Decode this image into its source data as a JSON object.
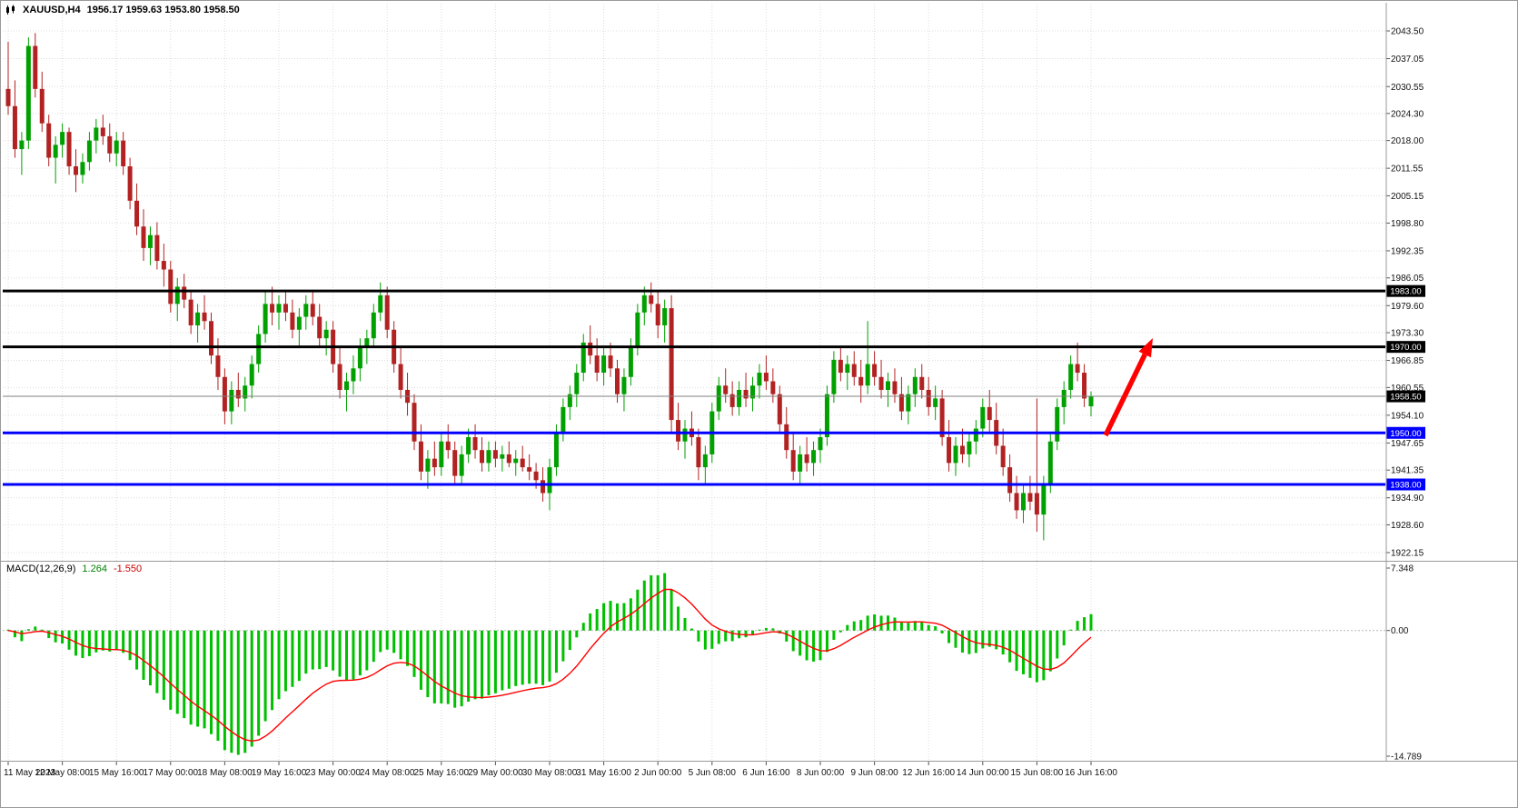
{
  "header": {
    "symbol_timeframe": "XAUUSD,H4",
    "ohlc": "1956.17 1959.63 1953.80 1958.50"
  },
  "chart_data": {
    "type": "candlestick",
    "symbol": "XAUUSD",
    "timeframe": "H4",
    "current_ohlc": {
      "open": 1956.17,
      "high": 1959.63,
      "low": 1953.8,
      "close": 1958.5
    },
    "price_axis_ticks": [
      "2043.50",
      "2037.05",
      "2030.55",
      "2024.30",
      "2018.00",
      "2011.55",
      "2005.15",
      "1998.80",
      "1992.35",
      "1986.05",
      "1979.60",
      "1973.30",
      "1966.85",
      "1960.55",
      "1954.10",
      "1947.65",
      "1941.35",
      "1934.90",
      "1928.60",
      "1922.15"
    ],
    "time_axis_labels": [
      "11 May 2023",
      "12 May 08:00",
      "15 May 16:00",
      "17 May 00:00",
      "18 May 08:00",
      "19 May 16:00",
      "23 May 00:00",
      "24 May 08:00",
      "25 May 16:00",
      "29 May 00:00",
      "30 May 08:00",
      "31 May 16:00",
      "2 Jun 00:00",
      "5 Jun 08:00",
      "6 Jun 16:00",
      "8 Jun 00:00",
      "9 Jun 08:00",
      "12 Jun 16:00",
      "14 Jun 00:00",
      "15 Jun 08:00",
      "16 Jun 16:00"
    ],
    "bars_per_time_tick": 8,
    "candles": [
      [
        2030,
        2041,
        2024,
        2026
      ],
      [
        2026,
        2032,
        2014,
        2016
      ],
      [
        2016,
        2020,
        2010,
        2018
      ],
      [
        2018,
        2042,
        2016,
        2040
      ],
      [
        2040,
        2043,
        2028,
        2030
      ],
      [
        2030,
        2034,
        2020,
        2022
      ],
      [
        2022,
        2024,
        2012,
        2014
      ],
      [
        2014,
        2019,
        2008,
        2017
      ],
      [
        2017,
        2022,
        2014,
        2020
      ],
      [
        2020,
        2021,
        2010,
        2012
      ],
      [
        2012,
        2016,
        2006,
        2010
      ],
      [
        2010,
        2015,
        2008,
        2013
      ],
      [
        2013,
        2020,
        2011,
        2018
      ],
      [
        2018,
        2023,
        2015,
        2021
      ],
      [
        2021,
        2024,
        2017,
        2019
      ],
      [
        2019,
        2022,
        2013,
        2015
      ],
      [
        2015,
        2020,
        2012,
        2018
      ],
      [
        2018,
        2020,
        2010,
        2012
      ],
      [
        2012,
        2014,
        2002,
        2004
      ],
      [
        2004,
        2008,
        1996,
        1998
      ],
      [
        1998,
        2002,
        1990,
        1993
      ],
      [
        1993,
        1998,
        1989,
        1996
      ],
      [
        1996,
        1999,
        1988,
        1990
      ],
      [
        1990,
        1994,
        1984,
        1988
      ],
      [
        1988,
        1990,
        1978,
        1980
      ],
      [
        1980,
        1986,
        1976,
        1984
      ],
      [
        1984,
        1987,
        1979,
        1981
      ],
      [
        1981,
        1983,
        1973,
        1975
      ],
      [
        1975,
        1980,
        1971,
        1978
      ],
      [
        1978,
        1982,
        1974,
        1976
      ],
      [
        1976,
        1978,
        1966,
        1968
      ],
      [
        1968,
        1972,
        1960,
        1963
      ],
      [
        1963,
        1965,
        1952,
        1955
      ],
      [
        1955,
        1962,
        1952,
        1960
      ],
      [
        1960,
        1964,
        1956,
        1958
      ],
      [
        1958,
        1963,
        1955,
        1961
      ],
      [
        1961,
        1968,
        1958,
        1966
      ],
      [
        1966,
        1975,
        1964,
        1973
      ],
      [
        1973,
        1983,
        1971,
        1980
      ],
      [
        1980,
        1984,
        1975,
        1978
      ],
      [
        1978,
        1982,
        1974,
        1980
      ],
      [
        1980,
        1983,
        1976,
        1978
      ],
      [
        1978,
        1981,
        1972,
        1974
      ],
      [
        1974,
        1979,
        1970,
        1977
      ],
      [
        1977,
        1982,
        1974,
        1980
      ],
      [
        1980,
        1983,
        1975,
        1977
      ],
      [
        1977,
        1980,
        1970,
        1972
      ],
      [
        1972,
        1976,
        1968,
        1974
      ],
      [
        1974,
        1976,
        1964,
        1966
      ],
      [
        1966,
        1970,
        1958,
        1960
      ],
      [
        1960,
        1964,
        1955,
        1962
      ],
      [
        1962,
        1968,
        1959,
        1965
      ],
      [
        1965,
        1972,
        1962,
        1970
      ],
      [
        1970,
        1974,
        1966,
        1972
      ],
      [
        1972,
        1980,
        1970,
        1978
      ],
      [
        1978,
        1985,
        1976,
        1982
      ],
      [
        1982,
        1984,
        1972,
        1974
      ],
      [
        1974,
        1976,
        1964,
        1966
      ],
      [
        1966,
        1970,
        1958,
        1960
      ],
      [
        1960,
        1964,
        1954,
        1957
      ],
      [
        1957,
        1959,
        1946,
        1948
      ],
      [
        1948,
        1952,
        1939,
        1941
      ],
      [
        1941,
        1946,
        1937,
        1944
      ],
      [
        1944,
        1948,
        1940,
        1942
      ],
      [
        1942,
        1950,
        1940,
        1948
      ],
      [
        1948,
        1952,
        1944,
        1946
      ],
      [
        1946,
        1948,
        1938,
        1940
      ],
      [
        1940,
        1947,
        1938,
        1945
      ],
      [
        1945,
        1951,
        1943,
        1949
      ],
      [
        1949,
        1952,
        1944,
        1946
      ],
      [
        1946,
        1949,
        1941,
        1943
      ],
      [
        1943,
        1948,
        1941,
        1946
      ],
      [
        1946,
        1948,
        1942,
        1944
      ],
      [
        1944,
        1947,
        1941,
        1945
      ],
      [
        1945,
        1948,
        1942,
        1943
      ],
      [
        1943,
        1946,
        1940,
        1944
      ],
      [
        1944,
        1947,
        1941,
        1942
      ],
      [
        1942,
        1945,
        1939,
        1941
      ],
      [
        1941,
        1943,
        1937,
        1939
      ],
      [
        1939,
        1942,
        1934,
        1936
      ],
      [
        1936,
        1944,
        1932,
        1942
      ],
      [
        1942,
        1952,
        1940,
        1950
      ],
      [
        1950,
        1958,
        1948,
        1956
      ],
      [
        1956,
        1961,
        1953,
        1959
      ],
      [
        1959,
        1966,
        1956,
        1964
      ],
      [
        1964,
        1973,
        1962,
        1971
      ],
      [
        1971,
        1975,
        1966,
        1968
      ],
      [
        1968,
        1972,
        1962,
        1964
      ],
      [
        1964,
        1970,
        1961,
        1968
      ],
      [
        1968,
        1971,
        1963,
        1965
      ],
      [
        1965,
        1967,
        1957,
        1959
      ],
      [
        1959,
        1965,
        1955,
        1963
      ],
      [
        1963,
        1972,
        1961,
        1970
      ],
      [
        1970,
        1980,
        1968,
        1978
      ],
      [
        1978,
        1984,
        1975,
        1982
      ],
      [
        1982,
        1985,
        1978,
        1980
      ],
      [
        1980,
        1983,
        1972,
        1975
      ],
      [
        1975,
        1981,
        1971,
        1979
      ],
      [
        1979,
        1982,
        1950,
        1953
      ],
      [
        1953,
        1957,
        1946,
        1948
      ],
      [
        1948,
        1953,
        1944,
        1951
      ],
      [
        1951,
        1955,
        1947,
        1949
      ],
      [
        1949,
        1951,
        1939,
        1942
      ],
      [
        1942,
        1947,
        1938,
        1945
      ],
      [
        1945,
        1957,
        1943,
        1955
      ],
      [
        1955,
        1963,
        1953,
        1961
      ],
      [
        1961,
        1965,
        1957,
        1959
      ],
      [
        1959,
        1962,
        1954,
        1956
      ],
      [
        1956,
        1962,
        1954,
        1960
      ],
      [
        1960,
        1964,
        1956,
        1958
      ],
      [
        1958,
        1963,
        1955,
        1961
      ],
      [
        1961,
        1966,
        1958,
        1964
      ],
      [
        1964,
        1968,
        1960,
        1962
      ],
      [
        1962,
        1965,
        1957,
        1959
      ],
      [
        1959,
        1961,
        1950,
        1952
      ],
      [
        1952,
        1956,
        1944,
        1946
      ],
      [
        1946,
        1950,
        1939,
        1941
      ],
      [
        1941,
        1947,
        1938,
        1945
      ],
      [
        1945,
        1949,
        1941,
        1943
      ],
      [
        1943,
        1948,
        1940,
        1946
      ],
      [
        1946,
        1951,
        1943,
        1949
      ],
      [
        1949,
        1961,
        1947,
        1959
      ],
      [
        1959,
        1969,
        1957,
        1967
      ],
      [
        1967,
        1970,
        1962,
        1964
      ],
      [
        1964,
        1968,
        1960,
        1966
      ],
      [
        1966,
        1969,
        1961,
        1963
      ],
      [
        1963,
        1967,
        1957,
        1961
      ],
      [
        1961,
        1976,
        1959,
        1966
      ],
      [
        1966,
        1969,
        1961,
        1963
      ],
      [
        1963,
        1967,
        1958,
        1960
      ],
      [
        1960,
        1964,
        1956,
        1962
      ],
      [
        1962,
        1965,
        1957,
        1959
      ],
      [
        1959,
        1963,
        1953,
        1955
      ],
      [
        1955,
        1961,
        1952,
        1959
      ],
      [
        1959,
        1965,
        1956,
        1963
      ],
      [
        1963,
        1966,
        1958,
        1960
      ],
      [
        1960,
        1963,
        1954,
        1956
      ],
      [
        1956,
        1961,
        1953,
        1958
      ],
      [
        1958,
        1960,
        1947,
        1949
      ],
      [
        1949,
        1953,
        1941,
        1943
      ],
      [
        1943,
        1949,
        1940,
        1947
      ],
      [
        1947,
        1951,
        1943,
        1945
      ],
      [
        1945,
        1950,
        1942,
        1948
      ],
      [
        1948,
        1953,
        1945,
        1951
      ],
      [
        1951,
        1958,
        1949,
        1956
      ],
      [
        1956,
        1960,
        1950,
        1953
      ],
      [
        1953,
        1957,
        1945,
        1947
      ],
      [
        1947,
        1951,
        1940,
        1942
      ],
      [
        1942,
        1945,
        1934,
        1936
      ],
      [
        1936,
        1940,
        1930,
        1932
      ],
      [
        1932,
        1938,
        1929,
        1936
      ],
      [
        1936,
        1940,
        1932,
        1934
      ],
      [
        1936,
        1958,
        1927,
        1931
      ],
      [
        1931,
        1940,
        1925,
        1938
      ],
      [
        1938,
        1950,
        1936,
        1948
      ],
      [
        1948,
        1958,
        1946,
        1956
      ],
      [
        1956,
        1962,
        1952,
        1960
      ],
      [
        1960,
        1968,
        1958,
        1966
      ],
      [
        1966,
        1971,
        1962,
        1964
      ],
      [
        1964,
        1966,
        1956,
        1958
      ],
      [
        1956.17,
        1959.63,
        1953.8,
        1958.5
      ]
    ],
    "horizontal_lines": [
      {
        "price": 1983.0,
        "label": "1983.00",
        "color": "#000000"
      },
      {
        "price": 1970.0,
        "label": "1970.00",
        "color": "#000000"
      },
      {
        "price": 1950.0,
        "label": "1950.00",
        "color": "#0000FF"
      },
      {
        "price": 1938.0,
        "label": "1938.00",
        "color": "#0000FF"
      }
    ],
    "current_price": {
      "value": 1958.5,
      "label": "1958.50",
      "line_color": "#808080",
      "badge_color": "#000000"
    },
    "arrow": {
      "tail": [
        1216,
        478
      ],
      "head": [
        1268,
        371
      ],
      "color": "#FF0000"
    },
    "indicator": {
      "label": "MACD(12,26,9)",
      "macd_value": "1.264",
      "signal_value": "-1.550",
      "scale_labels": [
        "7.348",
        "0.00",
        "-14.789"
      ]
    },
    "colors": {
      "bull": "#00A000",
      "bear": "#B22222",
      "histogram": "#00C000",
      "signal": "#FF0000",
      "grid": "#DCDCDC",
      "axis_text": "#111111",
      "separator": "#999999"
    }
  }
}
